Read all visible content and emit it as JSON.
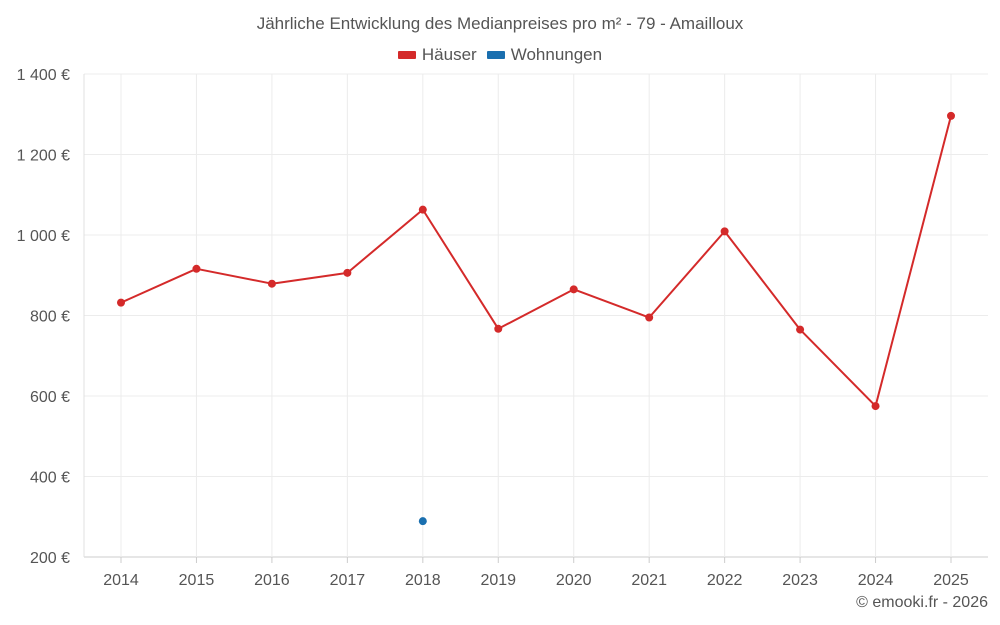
{
  "chart_data": {
    "type": "line",
    "title": "Jährliche Entwicklung des Medianpreises pro m² - 79 - Amailloux",
    "categories": [
      "2014",
      "2015",
      "2016",
      "2017",
      "2018",
      "2019",
      "2020",
      "2021",
      "2022",
      "2023",
      "2024",
      "2025"
    ],
    "series": [
      {
        "name": "Häuser",
        "color": "#d42a2a",
        "values": [
          832,
          916,
          879,
          906,
          1063,
          767,
          865,
          795,
          1009,
          765,
          575,
          1296
        ]
      },
      {
        "name": "Wohnungen",
        "color": "#1a6faf",
        "values": [
          null,
          null,
          null,
          null,
          289,
          null,
          null,
          null,
          null,
          null,
          null,
          null
        ]
      }
    ],
    "y_ticks": [
      200,
      400,
      600,
      800,
      1000,
      1200,
      1400
    ],
    "y_tick_labels": [
      "200 €",
      "400 €",
      "600 €",
      "800 €",
      "1 000 €",
      "1 200 €",
      "1 400 €"
    ],
    "ylim": [
      200,
      1400
    ],
    "xlabel": "",
    "ylabel": "",
    "grid": true,
    "legend_position": "top-center"
  },
  "copyright": "© emooki.fr - 2026"
}
